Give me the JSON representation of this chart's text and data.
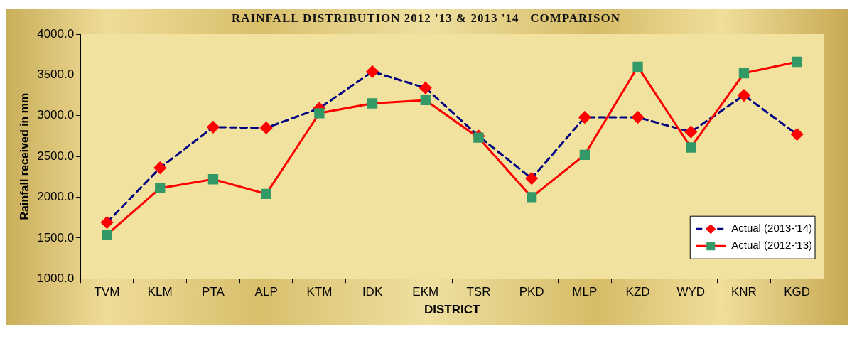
{
  "chart_data": {
    "type": "line",
    "title": "RAINFALL DISTRIBUTION 2012 '13 & 2013 '14   COMPARISON",
    "xlabel": "DISTRICT",
    "ylabel": "Rainfall received in mm",
    "categories": [
      "TVM",
      "KLM",
      "PTA",
      "ALP",
      "KTM",
      "IDK",
      "EKM",
      "TSR",
      "PKD",
      "MLP",
      "KZD",
      "WYD",
      "KNR",
      "KGD"
    ],
    "series": [
      {
        "name": "Actual (2013-'14)",
        "color": "#000080",
        "colors": [
          "#ff0000",
          "#ff0000",
          "#ff0000",
          "#ff0000",
          "#ff0000",
          "#ff0000",
          "#ff0000",
          "#ff0000",
          "#ff0000",
          "#ff0000",
          "#ff0000",
          "#ff0000",
          "#ff0000",
          "#ff0000"
        ],
        "marker": "diamond",
        "line_style": "dashed",
        "values": [
          1690,
          2360,
          2860,
          2850,
          3090,
          3540,
          3340,
          2750,
          2230,
          2980,
          2980,
          2800,
          3250,
          2770
        ]
      },
      {
        "name": "Actual (2012-'13)",
        "color": "#ff0000",
        "colors": [
          "#339966",
          "#339966",
          "#339966",
          "#339966",
          "#339966",
          "#339966",
          "#339966",
          "#339966",
          "#339966",
          "#339966",
          "#339966",
          "#339966",
          "#339966",
          "#339966"
        ],
        "marker": "square",
        "line_style": "solid",
        "values": [
          1540,
          2110,
          2220,
          2040,
          3030,
          3150,
          3190,
          2730,
          2000,
          2520,
          3600,
          2610,
          3520,
          3660
        ]
      }
    ],
    "ylim": [
      1000,
      4000
    ],
    "yticks": [
      {
        "value": 1000,
        "label": "1000.0"
      },
      {
        "value": 1500,
        "label": "1500.0"
      },
      {
        "value": 2000,
        "label": "2000.0"
      },
      {
        "value": 2500,
        "label": "2500.0"
      },
      {
        "value": 3000,
        "label": "3000.0"
      },
      {
        "value": 3500,
        "label": "3500.0"
      },
      {
        "value": 4000,
        "label": "4000.0"
      }
    ],
    "grid": false,
    "legend": "bottom right"
  }
}
